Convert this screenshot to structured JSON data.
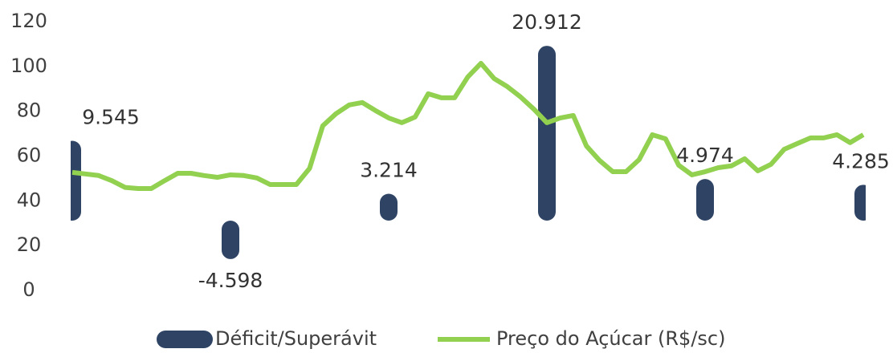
{
  "chart_data": {
    "type": "combo",
    "ylim": [
      0,
      120
    ],
    "yticks": [
      0,
      20,
      40,
      60,
      80,
      100,
      120
    ],
    "y2lim": [
      -8.35,
      23.8
    ],
    "xlim": [
      0,
      60
    ],
    "series": [
      {
        "name": "Déficit/Superávit",
        "type": "bar",
        "axis": "y2",
        "color": "#2f4465",
        "x": [
          0,
          12,
          24,
          36,
          48,
          60
        ],
        "values": [
          9.545,
          -4.598,
          3.214,
          20.912,
          4.974,
          4.285
        ]
      },
      {
        "name": "Preço do Açúcar (R$/sc)",
        "type": "line",
        "color": "#92d050",
        "x": [
          0,
          1,
          2,
          3,
          4,
          5,
          6,
          7,
          8,
          9,
          10,
          11,
          12,
          13,
          14,
          15,
          16,
          17,
          18,
          19,
          20,
          21,
          22,
          23,
          24,
          25,
          26,
          27,
          28,
          29,
          30,
          31,
          32,
          33,
          34,
          35,
          36,
          37,
          38,
          39,
          40,
          41,
          42,
          43,
          44,
          45,
          46,
          47,
          48,
          49,
          50,
          51,
          52,
          53,
          54,
          55,
          56,
          57,
          58,
          59,
          60
        ],
        "values": [
          52.7,
          52,
          51.3,
          49,
          46,
          45.5,
          45.5,
          49,
          52.3,
          52.3,
          51.3,
          50.5,
          51.6,
          51.3,
          50.2,
          47.3,
          47.3,
          47.3,
          54.5,
          73.5,
          78.9,
          82.8,
          83.9,
          80.3,
          77,
          74.9,
          77.4,
          87.8,
          86,
          86,
          95.3,
          101.4,
          94.6,
          91,
          86.4,
          81,
          74.9,
          77,
          78.1,
          64.5,
          58,
          53,
          53,
          58.4,
          69.5,
          67.7,
          55.9,
          51.6,
          53,
          54.8,
          55.6,
          58.8,
          53.4,
          56.3,
          63,
          65.6,
          68.1,
          68.1,
          69.5,
          66,
          69.5
        ]
      }
    ]
  }
}
